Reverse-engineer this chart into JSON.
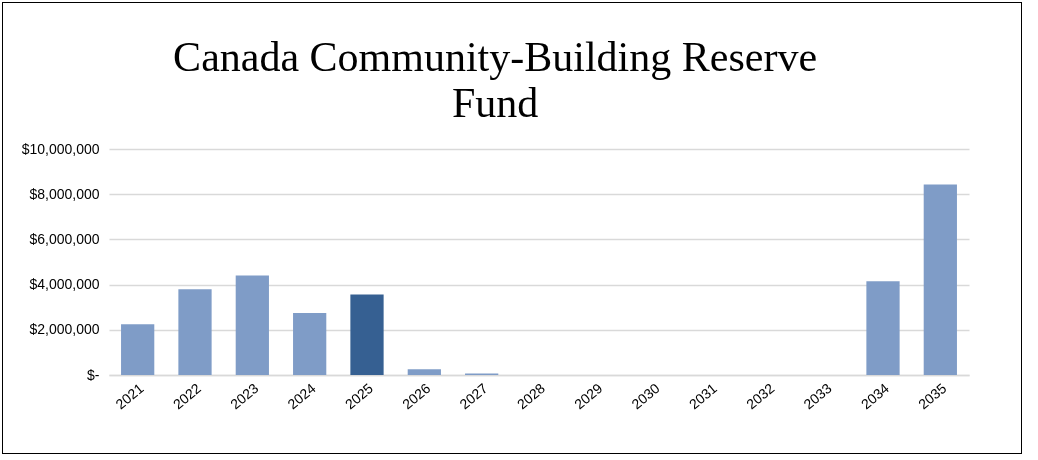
{
  "chart_data": {
    "type": "bar",
    "title": "Canada Community-Building Reserve Fund",
    "categories": [
      "2021",
      "2022",
      "2023",
      "2024",
      "2025",
      "2026",
      "2027",
      "2028",
      "2029",
      "2030",
      "2031",
      "2032",
      "2033",
      "2034",
      "2035"
    ],
    "values": [
      2250000,
      3790000,
      4400000,
      2740000,
      3560000,
      250000,
      70000,
      0,
      0,
      0,
      0,
      0,
      0,
      4150000,
      8430000
    ],
    "colors": [
      "#7f9cc7",
      "#7f9cc7",
      "#7f9cc7",
      "#7f9cc7",
      "#366092",
      "#7f9cc7",
      "#7f9cc7",
      "#7f9cc7",
      "#7f9cc7",
      "#7f9cc7",
      "#7f9cc7",
      "#7f9cc7",
      "#7f9cc7",
      "#7f9cc7",
      "#7f9cc7"
    ],
    "ylim": [
      0,
      10000000
    ],
    "yticks": [
      {
        "value": 0,
        "label": "$-"
      },
      {
        "value": 2000000,
        "label": "$2,000,000"
      },
      {
        "value": 4000000,
        "label": "$4,000,000"
      },
      {
        "value": 6000000,
        "label": "$6,000,000"
      },
      {
        "value": 8000000,
        "label": "$8,000,000"
      },
      {
        "value": 10000000,
        "label": "$10,000,000"
      }
    ],
    "grid": "y"
  }
}
